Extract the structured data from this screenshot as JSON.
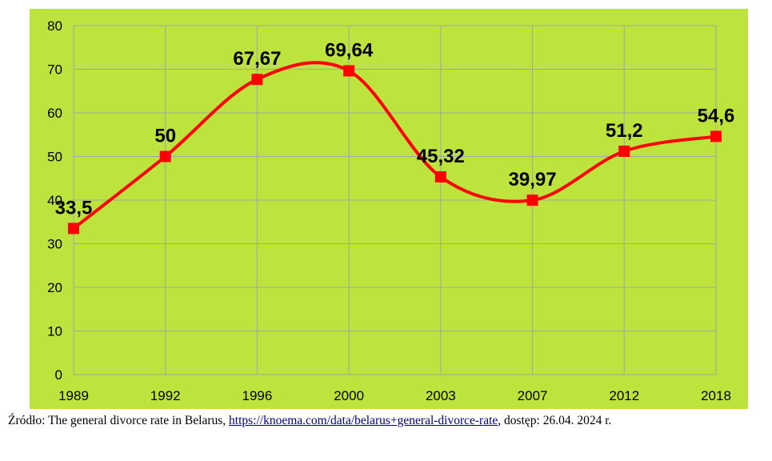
{
  "chart_data": {
    "type": "line",
    "categories": [
      "1989",
      "1992",
      "1996",
      "2000",
      "2003",
      "2007",
      "2012",
      "2018"
    ],
    "values": [
      33.5,
      50,
      67.67,
      69.64,
      45.32,
      39.97,
      51.2,
      54.6
    ],
    "data_labels": [
      "33,5",
      "50",
      "67,67",
      "69,64",
      "45,32",
      "39,97",
      "51,2",
      "54,6"
    ],
    "y_ticks": [
      "0",
      "10",
      "20",
      "30",
      "40",
      "50",
      "60",
      "70",
      "80"
    ],
    "ylim": [
      0,
      80
    ],
    "smooth": true,
    "grid": true,
    "colors": {
      "background": "#bde33d",
      "line": "#ff0000",
      "marker": "#ff0000",
      "grid": "#9fa8a0"
    }
  },
  "caption": {
    "prefix": "Źródło: The general divorce rate in Belarus, ",
    "link": "https://knoema.com/data/belarus+general-divorce-rate",
    "suffix": ", dostęp: 26.04. 2024 r."
  }
}
